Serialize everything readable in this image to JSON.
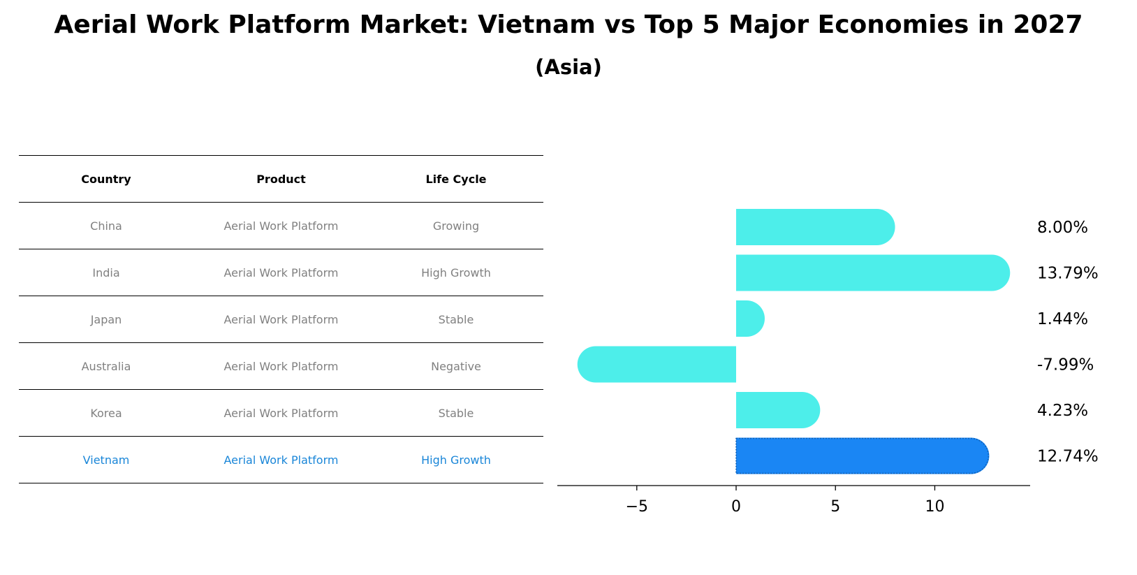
{
  "title": "Aerial Work Platform Market: Vietnam vs Top 5 Major Economies in 2027",
  "subtitle": "(Asia)",
  "table": {
    "headers": [
      "Country",
      "Product",
      "Life Cycle"
    ],
    "rows": [
      [
        "China",
        "Aerial Work Platform",
        "Growing"
      ],
      [
        "India",
        "Aerial Work Platform",
        "High Growth"
      ],
      [
        "Japan",
        "Aerial Work Platform",
        "Stable"
      ],
      [
        "Australia",
        "Aerial Work Platform",
        "Negative"
      ],
      [
        "Korea",
        "Aerial Work Platform",
        "Stable"
      ],
      [
        "Vietnam",
        "Aerial Work Platform",
        "High Growth"
      ]
    ]
  },
  "chart_data": {
    "type": "bar",
    "orientation": "horizontal",
    "categories": [
      "China",
      "India",
      "Japan",
      "Australia",
      "Korea",
      "Vietnam"
    ],
    "values": [
      8.0,
      13.79,
      1.44,
      -7.99,
      4.23,
      12.74
    ],
    "labels": [
      "8.00%",
      "13.79%",
      "1.44%",
      "-7.99%",
      "4.23%",
      "12.74%"
    ],
    "xlim": [
      -9,
      14.8
    ],
    "xticks": [
      -5,
      0,
      5,
      10
    ],
    "xtick_labels": [
      "−5",
      "0",
      "5",
      "10"
    ],
    "grid": false,
    "colors": {
      "bar": "#4deeea",
      "highlight": "#1a86f4",
      "highlight_text": "#1a86d8"
    }
  }
}
